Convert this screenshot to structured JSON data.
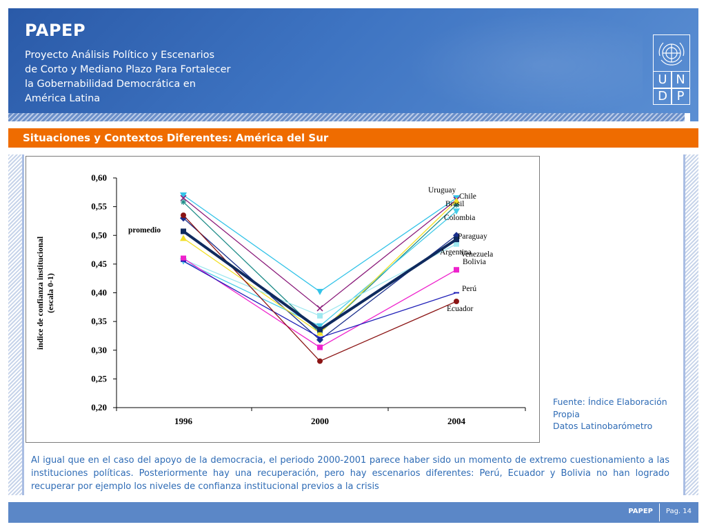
{
  "header": {
    "app_title": "PAPEP",
    "subtitle_lines": [
      "Proyecto Análisis Político y Escenarios",
      "de Corto y Mediano Plazo Para Fortalecer",
      "la Gobernabilidad Democrática en",
      "América Latina"
    ],
    "logo": {
      "icon": "un-globe-icon",
      "letters": [
        "U",
        "N",
        "D",
        "P"
      ]
    }
  },
  "section": {
    "title": "Situaciones y Contextos Diferentes: América del Sur"
  },
  "chart_data": {
    "type": "line",
    "title": "",
    "xlabel": "",
    "ylabel": "indice de confianza institucional (escala 0-1)",
    "ylabel_lines": [
      "indice de confianza institucional",
      "(escala 0-1)"
    ],
    "categories": [
      "1996",
      "2000",
      "2004"
    ],
    "ylim": [
      0.2,
      0.6
    ],
    "yticks": [
      0.2,
      0.25,
      0.3,
      0.35,
      0.4,
      0.45,
      0.5,
      0.55,
      0.6
    ],
    "ytick_labels": [
      "0,20",
      "0,25",
      "0,30",
      "0,35",
      "0,40",
      "0,45",
      "0,50",
      "0,55",
      "0,60"
    ],
    "series": [
      {
        "name": "Uruguay",
        "values": [
          0.57,
          0.402,
          0.565
        ],
        "color": "#33c3e8",
        "marker": "triangle-down"
      },
      {
        "name": "Chile",
        "values": [
          0.565,
          0.373,
          0.562
        ],
        "color": "#8a1a7a",
        "marker": "x"
      },
      {
        "name": "Brasil",
        "values": [
          0.558,
          0.33,
          0.553
        ],
        "color": "#1e8c88",
        "marker": "star"
      },
      {
        "name": "Colombia",
        "values": [
          0.455,
          0.342,
          0.542
        ],
        "color": "#45cce8",
        "marker": "triangle-down"
      },
      {
        "name": "Paraguay",
        "values": [
          0.53,
          0.318,
          0.5
        ],
        "color": "#1a2f8c",
        "marker": "diamond"
      },
      {
        "name": "Argentina",
        "values": [
          0.495,
          0.33,
          0.56
        ],
        "color": "#f2e028",
        "marker": "triangle-up"
      },
      {
        "name": "Venezuela",
        "values": [
          0.458,
          0.36,
          0.485
        ],
        "color": "#9fe8f0",
        "marker": "square"
      },
      {
        "name": "Bolivia",
        "values": [
          0.46,
          0.305,
          0.44
        ],
        "color": "#ee22cc",
        "marker": "square"
      },
      {
        "name": "Perú",
        "values": [
          0.455,
          0.322,
          0.4
        ],
        "color": "#2020b8",
        "marker": "dash"
      },
      {
        "name": "Ecuador",
        "values": [
          0.535,
          0.281,
          0.385
        ],
        "color": "#8b1414",
        "marker": "circle"
      },
      {
        "name": "promedio",
        "values": [
          0.507,
          0.336,
          0.493
        ],
        "color": "#0f2a5e",
        "marker": "square",
        "bold": true
      }
    ]
  },
  "source": {
    "lines": [
      "Fuente:  Índice Elaboración",
      "Propia",
      "Datos Latinobarómetro"
    ]
  },
  "body_text": "Al igual que en el caso del apoyo de la democracia, el periodo 2000-2001 parece haber sido un momento de extremo cuestionamiento a las instituciones políticas. Posteriormente hay una recuperación, pero hay escenarios diferentes: Perú, Ecuador y Bolivia no han logrado recuperar por ejemplo los niveles de confianza institucional previos a la crisis",
  "footer": {
    "brand": "PAPEP",
    "page": "Pag. 14"
  }
}
